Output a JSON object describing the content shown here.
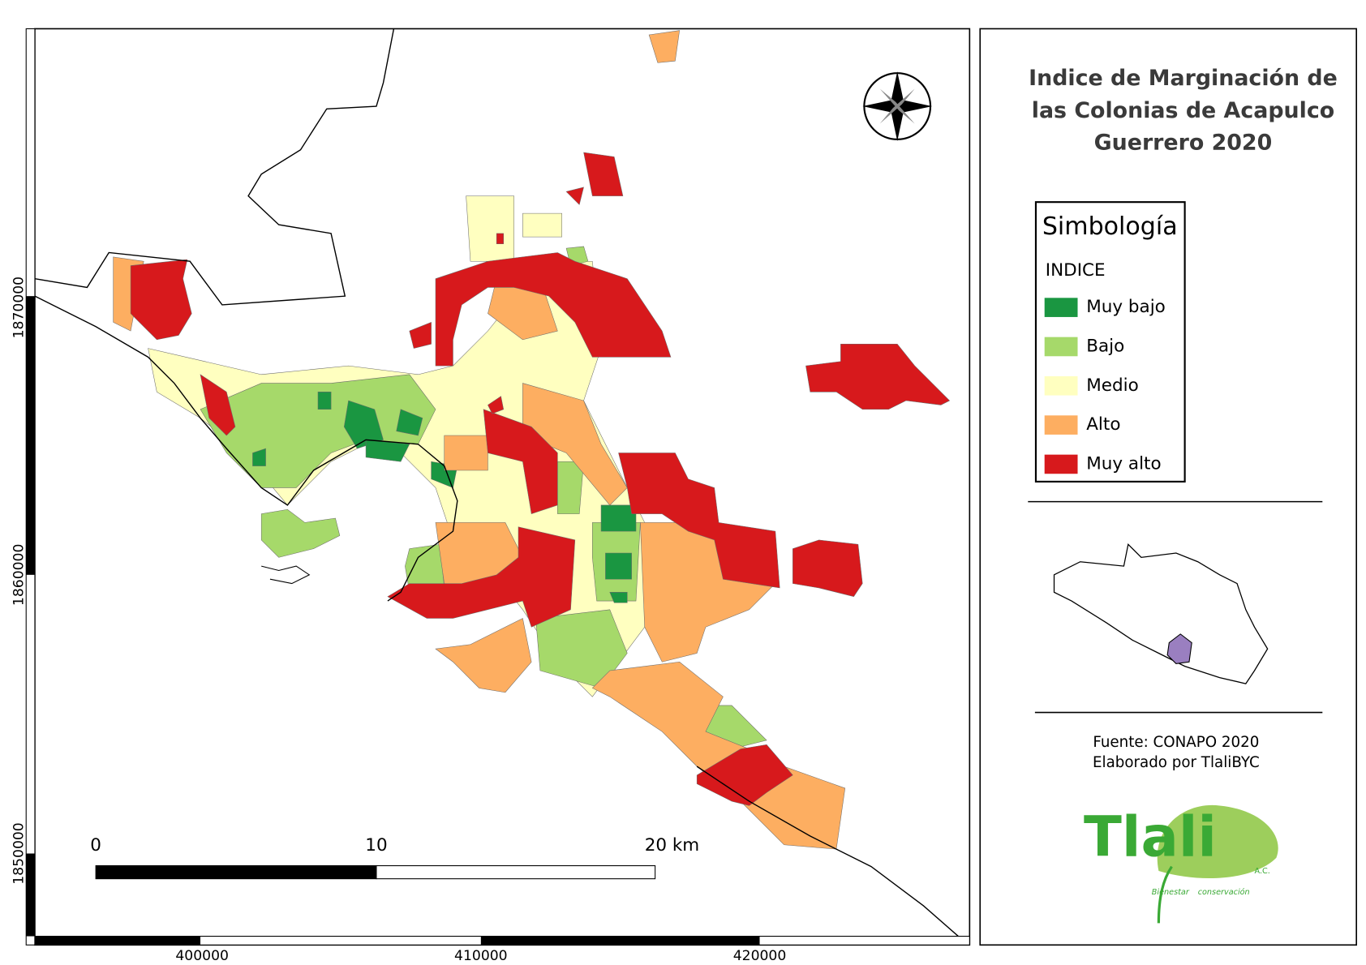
{
  "map": {
    "title_lines": [
      "Indice de Marginación de",
      "las Colonias de Acapulco",
      "Guerrero 2020"
    ],
    "legend": {
      "title": "Simbología",
      "subtitle": "INDICE",
      "items": [
        {
          "name": "Muy bajo",
          "color": "#1a9641"
        },
        {
          "name": "Bajo",
          "color": "#a6d96a"
        },
        {
          "name": "Medio",
          "color": "#ffffc0"
        },
        {
          "name": "Alto",
          "color": "#fdae61"
        },
        {
          "name": "Muy alto",
          "color": "#d7191c"
        }
      ]
    },
    "y_coordinates": [
      1870000,
      1860000,
      1850000
    ],
    "x_coordinates": [
      400000,
      410000,
      420000
    ],
    "scale_bar": [
      "0",
      "10",
      "20 km"
    ],
    "source": "Fuente: CONAPO 2020",
    "author": "Elaborado por TlaliBYC",
    "logo": {
      "name": "Tlali",
      "suffix": "A.C.",
      "tag_left": "Bienestar",
      "tag_right": "conservación"
    },
    "inset_color": "#9a7fc0"
  }
}
